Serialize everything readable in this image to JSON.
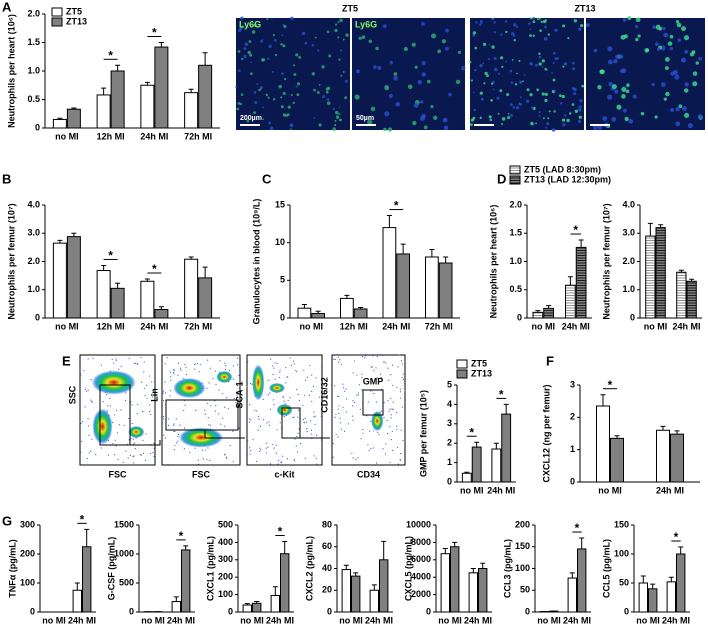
{
  "panel_labels": [
    "A",
    "B",
    "C",
    "D",
    "E",
    "F",
    "G"
  ],
  "microscopy": {
    "titles": [
      "ZT5",
      "ZT13"
    ],
    "stain": [
      "Ly6G",
      "Ly6G"
    ],
    "scale_bars": [
      "200µm",
      "50µm"
    ]
  },
  "flow": {
    "plots": [
      {
        "x": "FSC",
        "y": "SSC"
      },
      {
        "x": "FSC",
        "y": "Lin"
      },
      {
        "x": "c-Kit",
        "y": "SCA-1"
      },
      {
        "x": "CD34",
        "y": "CD16/32"
      }
    ],
    "gate": "GMP"
  },
  "chart_data": [
    {
      "type": "bar",
      "ylabel": "Neutrophils per heart (10⁶)",
      "categories": [
        "no MI",
        "12h MI",
        "24h MI",
        "72h MI"
      ],
      "legend": true,
      "series": [
        {
          "name": "ZT5",
          "color": "#ffffff",
          "values": [
            0.15,
            0.58,
            0.75,
            0.62
          ],
          "errors": [
            0.02,
            0.12,
            0.05,
            0.06
          ]
        },
        {
          "name": "ZT13",
          "color": "#808080",
          "values": [
            0.33,
            1.0,
            1.42,
            1.1
          ],
          "errors": [
            0.02,
            0.1,
            0.08,
            0.22
          ]
        }
      ],
      "ylim": [
        0,
        2
      ],
      "yticks": [
        0,
        0.5,
        {
          "value": 1,
          "label": "1.0"
        },
        1.5,
        {
          "value": 2,
          "label": "2.0"
        }
      ],
      "annotations": [
        {
          "label": "*",
          "category": 1
        },
        {
          "label": "*",
          "category": 2
        }
      ]
    },
    {
      "type": "bar",
      "ylabel": "Neutrophils per femur (10⁷)",
      "categories": [
        "no MI",
        "12h MI",
        "24h MI",
        "72h MI"
      ],
      "series": [
        {
          "color": "#ffffff",
          "values": [
            2.65,
            1.68,
            1.3,
            2.08
          ],
          "errors": [
            0.1,
            0.18,
            0.08,
            0.08
          ]
        },
        {
          "color": "#808080",
          "values": [
            2.88,
            1.05,
            0.3,
            1.42
          ],
          "errors": [
            0.12,
            0.18,
            0.1,
            0.38
          ]
        }
      ],
      "ylim": [
        0,
        4
      ],
      "yticks": [
        0,
        {
          "value": 1,
          "label": "1.0"
        },
        {
          "value": 2,
          "label": "2.0"
        },
        {
          "value": 3,
          "label": "3.0"
        },
        {
          "value": 4,
          "label": "4.0"
        }
      ],
      "annotations": [
        {
          "label": "*",
          "category": 1
        },
        {
          "label": "*",
          "category": 2
        }
      ]
    },
    {
      "type": "bar",
      "ylabel": "Granulocytes in blood (10⁹/L)",
      "categories": [
        "no MI",
        "12h MI",
        "24h MI",
        "72h MI"
      ],
      "series": [
        {
          "color": "#ffffff",
          "values": [
            1.3,
            2.6,
            12.0,
            8.1
          ],
          "errors": [
            0.5,
            0.4,
            1.6,
            1.0
          ]
        },
        {
          "color": "#808080",
          "values": [
            0.6,
            1.2,
            8.5,
            7.3
          ],
          "errors": [
            0.3,
            0.2,
            1.3,
            0.8
          ]
        }
      ],
      "ylim": [
        0,
        15
      ],
      "yticks": [
        0,
        5,
        10,
        15
      ],
      "annotations": [
        {
          "label": "*",
          "category": 2
        }
      ]
    },
    {
      "type": "bar",
      "ylabel": "Neutrophils per heart (10⁶)",
      "categories": [
        "no MI",
        "24h MI"
      ],
      "legend": true,
      "pattern": "horizontal-lines",
      "series": [
        {
          "name": "ZT5 (LAD 8:30pm)",
          "color": "#ffffff",
          "values": [
            0.1,
            0.58
          ],
          "errors": [
            0.03,
            0.15
          ]
        },
        {
          "name": "ZT13 (LAD 12:30pm)",
          "color": "#808080",
          "values": [
            0.17,
            1.25
          ],
          "errors": [
            0.05,
            0.13
          ]
        }
      ],
      "ylim": [
        0,
        2
      ],
      "yticks": [
        0,
        0.5,
        {
          "value": 1,
          "label": "1.0"
        },
        1.5,
        {
          "value": 2,
          "label": "2.0"
        }
      ],
      "annotations": [
        {
          "label": "*",
          "category": 1
        }
      ]
    },
    {
      "type": "bar",
      "ylabel": "Neutrophils per femur (10⁷)",
      "categories": [
        "no MI",
        "24h MI"
      ],
      "pattern": "horizontal-lines",
      "series": [
        {
          "color": "#ffffff",
          "values": [
            2.9,
            1.62
          ],
          "errors": [
            0.45,
            0.07
          ]
        },
        {
          "color": "#808080",
          "values": [
            3.2,
            1.3
          ],
          "errors": [
            0.1,
            0.07
          ]
        }
      ],
      "ylim": [
        0,
        4
      ],
      "yticks": [
        0,
        {
          "value": 1,
          "label": "1.0"
        },
        {
          "value": 2,
          "label": "2.0"
        },
        {
          "value": 3,
          "label": "3.0"
        },
        {
          "value": 4,
          "label": "4.0"
        }
      ],
      "annotations": []
    },
    {
      "type": "bar",
      "ylabel": "GMP per femur (10⁵)",
      "categories": [
        "no MI",
        "24h MI"
      ],
      "legend": true,
      "series": [
        {
          "name": "ZT5",
          "color": "#ffffff",
          "values": [
            0.45,
            1.7
          ],
          "errors": [
            0.05,
            0.3
          ]
        },
        {
          "name": "ZT13",
          "color": "#808080",
          "values": [
            1.8,
            3.5
          ],
          "errors": [
            0.25,
            0.5
          ]
        }
      ],
      "ylim": [
        0,
        5
      ],
      "yticks": [
        0,
        1,
        2,
        3,
        4,
        5
      ],
      "annotations": [
        {
          "label": "*",
          "category": 0
        },
        {
          "label": "*",
          "category": 1
        }
      ]
    },
    {
      "type": "bar",
      "ylabel": "CXCL12 (ng per femur)",
      "categories": [
        "no MI",
        "24h MI"
      ],
      "series": [
        {
          "color": "#ffffff",
          "values": [
            2.35,
            1.6
          ],
          "errors": [
            0.35,
            0.12
          ]
        },
        {
          "color": "#808080",
          "values": [
            1.35,
            1.48
          ],
          "errors": [
            0.08,
            0.1
          ]
        }
      ],
      "ylim": [
        0,
        3
      ],
      "yticks": [
        0,
        1,
        2,
        3
      ],
      "annotations": [
        {
          "label": "*",
          "category": 0
        }
      ]
    },
    {
      "type": "bar",
      "ylabel": "TNFα (pg/mL)",
      "categories": [
        "no MI",
        "24h MI"
      ],
      "series": [
        {
          "color": "#ffffff",
          "values": [
            0,
            75
          ],
          "errors": [
            0,
            25
          ]
        },
        {
          "color": "#808080",
          "values": [
            0,
            225
          ],
          "errors": [
            0,
            60
          ]
        }
      ],
      "ylim": [
        0,
        300
      ],
      "yticks": [
        0,
        100,
        200,
        300
      ],
      "annotations": [
        {
          "label": "*",
          "category": 1
        }
      ]
    },
    {
      "type": "bar",
      "ylabel": "G-CSF (pg/mL)",
      "categories": [
        "no MI",
        "24h MI"
      ],
      "series": [
        {
          "color": "#ffffff",
          "values": [
            5,
            180
          ],
          "errors": [
            0,
            80
          ]
        },
        {
          "color": "#808080",
          "values": [
            5,
            1070
          ],
          "errors": [
            0,
            70
          ]
        }
      ],
      "ylim": [
        0,
        1500
      ],
      "yticks": [
        0,
        500,
        1000,
        1500
      ],
      "annotations": [
        {
          "label": "*",
          "category": 1
        }
      ]
    },
    {
      "type": "bar",
      "ylabel": "CXCL1 (pg/mL)",
      "categories": [
        "no MI",
        "24h MI"
      ],
      "series": [
        {
          "color": "#ffffff",
          "values": [
            40,
            95
          ],
          "errors": [
            8,
            50
          ]
        },
        {
          "color": "#808080",
          "values": [
            50,
            335
          ],
          "errors": [
            10,
            70
          ]
        }
      ],
      "ylim": [
        0,
        500
      ],
      "yticks": [
        0,
        100,
        200,
        300,
        400,
        500
      ],
      "annotations": [
        {
          "label": "*",
          "category": 1
        }
      ]
    },
    {
      "type": "bar",
      "ylabel": "CXCL2 (pg/mL)",
      "categories": [
        "no MI",
        "24h MI"
      ],
      "series": [
        {
          "color": "#ffffff",
          "values": [
            39,
            20
          ],
          "errors": [
            4,
            5
          ]
        },
        {
          "color": "#808080",
          "values": [
            33,
            48
          ],
          "errors": [
            3,
            17
          ]
        }
      ],
      "ylim": [
        0,
        80
      ],
      "yticks": [
        0,
        20,
        40,
        60,
        80
      ],
      "annotations": []
    },
    {
      "type": "bar",
      "ylabel": "CXCL5 (pg/mL)",
      "categories": [
        "no MI",
        "24h MI"
      ],
      "series": [
        {
          "color": "#ffffff",
          "values": [
            6700,
            4500
          ],
          "errors": [
            600,
            500
          ]
        },
        {
          "color": "#808080",
          "values": [
            7500,
            5000
          ],
          "errors": [
            500,
            600
          ]
        }
      ],
      "ylim": [
        0,
        10000
      ],
      "yticks": [
        0,
        2000,
        4000,
        6000,
        8000,
        10000
      ],
      "annotations": []
    },
    {
      "type": "bar",
      "ylabel": "CCL3 (pg/mL)",
      "categories": [
        "no MI",
        "24h MI"
      ],
      "series": [
        {
          "color": "#ffffff",
          "values": [
            1,
            78
          ],
          "errors": [
            0,
            12
          ]
        },
        {
          "color": "#808080",
          "values": [
            2,
            145
          ],
          "errors": [
            0,
            25
          ]
        }
      ],
      "ylim": [
        0,
        200
      ],
      "yticks": [
        0,
        50,
        100,
        150,
        200
      ],
      "annotations": [
        {
          "label": "*",
          "category": 1
        }
      ]
    },
    {
      "type": "bar",
      "ylabel": "CCL5 (pg/mL)",
      "categories": [
        "no MI",
        "24h MI"
      ],
      "series": [
        {
          "color": "#ffffff",
          "values": [
            50,
            52
          ],
          "errors": [
            12,
            8
          ]
        },
        {
          "color": "#808080",
          "values": [
            40,
            100
          ],
          "errors": [
            8,
            12
          ]
        }
      ],
      "ylim": [
        0,
        150
      ],
      "yticks": [
        0,
        50,
        100,
        150
      ],
      "annotations": [
        {
          "label": "*",
          "category": 1
        }
      ]
    }
  ]
}
